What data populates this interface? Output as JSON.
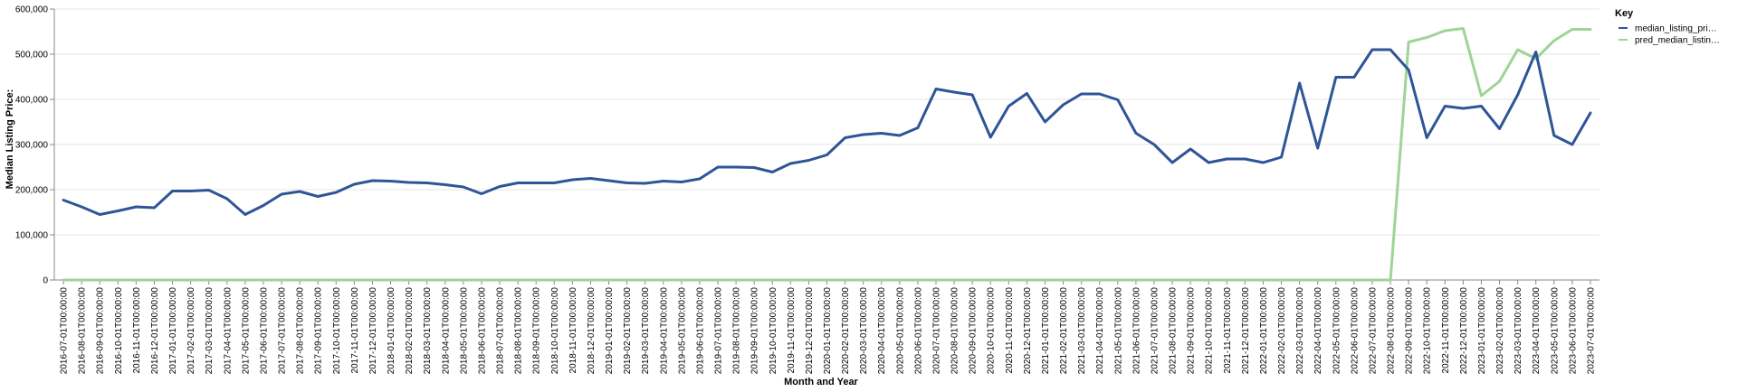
{
  "chart_data": {
    "type": "line",
    "xlabel": "Month and Year",
    "ylabel": "Median Listing Price:",
    "ylim": [
      0,
      600000
    ],
    "y_ticks": [
      "0",
      "100,000",
      "200,000",
      "300,000",
      "400,000",
      "500,000",
      "600,000"
    ],
    "grid": "horizontal",
    "legend": {
      "title": "Key",
      "placement": "top-right"
    },
    "x": [
      "2016-07-01T00:00:00",
      "2016-08-01T00:00:00",
      "2016-09-01T00:00:00",
      "2016-10-01T00:00:00",
      "2016-11-01T00:00:00",
      "2016-12-01T00:00:00",
      "2017-01-01T00:00:00",
      "2017-02-01T00:00:00",
      "2017-03-01T00:00:00",
      "2017-04-01T00:00:00",
      "2017-05-01T00:00:00",
      "2017-06-01T00:00:00",
      "2017-07-01T00:00:00",
      "2017-08-01T00:00:00",
      "2017-09-01T00:00:00",
      "2017-10-01T00:00:00",
      "2017-11-01T00:00:00",
      "2017-12-01T00:00:00",
      "2018-01-01T00:00:00",
      "2018-02-01T00:00:00",
      "2018-03-01T00:00:00",
      "2018-04-01T00:00:00",
      "2018-05-01T00:00:00",
      "2018-06-01T00:00:00",
      "2018-07-01T00:00:00",
      "2018-08-01T00:00:00",
      "2018-09-01T00:00:00",
      "2018-10-01T00:00:00",
      "2018-11-01T00:00:00",
      "2018-12-01T00:00:00",
      "2019-01-01T00:00:00",
      "2019-02-01T00:00:00",
      "2019-03-01T00:00:00",
      "2019-04-01T00:00:00",
      "2019-05-01T00:00:00",
      "2019-06-01T00:00:00",
      "2019-07-01T00:00:00",
      "2019-08-01T00:00:00",
      "2019-09-01T00:00:00",
      "2019-10-01T00:00:00",
      "2019-11-01T00:00:00",
      "2019-12-01T00:00:00",
      "2020-01-01T00:00:00",
      "2020-02-01T00:00:00",
      "2020-03-01T00:00:00",
      "2020-04-01T00:00:00",
      "2020-05-01T00:00:00",
      "2020-06-01T00:00:00",
      "2020-07-01T00:00:00",
      "2020-08-01T00:00:00",
      "2020-09-01T00:00:00",
      "2020-10-01T00:00:00",
      "2020-11-01T00:00:00",
      "2020-12-01T00:00:00",
      "2021-01-01T00:00:00",
      "2021-02-01T00:00:00",
      "2021-03-01T00:00:00",
      "2021-04-01T00:00:00",
      "2021-05-01T00:00:00",
      "2021-06-01T00:00:00",
      "2021-07-01T00:00:00",
      "2021-08-01T00:00:00",
      "2021-09-01T00:00:00",
      "2021-10-01T00:00:00",
      "2021-11-01T00:00:00",
      "2021-12-01T00:00:00",
      "2022-01-01T00:00:00",
      "2022-02-01T00:00:00",
      "2022-03-01T00:00:00",
      "2022-04-01T00:00:00",
      "2022-05-01T00:00:00",
      "2022-06-01T00:00:00",
      "2022-07-01T00:00:00",
      "2022-08-01T00:00:00",
      "2022-09-01T00:00:00",
      "2022-10-01T00:00:00",
      "2022-11-01T00:00:00",
      "2022-12-01T00:00:00",
      "2023-01-01T00:00:00",
      "2023-02-01T00:00:00",
      "2023-03-01T00:00:00",
      "2023-04-01T00:00:00",
      "2023-05-01T00:00:00",
      "2023-06-01T00:00:00",
      "2023-07-01T00:00:00"
    ],
    "series": [
      {
        "name": "median_listing_pri…",
        "color": "#2f5597",
        "values": [
          177000,
          162000,
          145000,
          153000,
          162000,
          160000,
          197000,
          197000,
          199000,
          180000,
          145000,
          165000,
          190000,
          196000,
          185000,
          194000,
          212000,
          220000,
          219000,
          216000,
          215000,
          211000,
          206000,
          191000,
          207000,
          215000,
          215000,
          215000,
          222000,
          225000,
          220000,
          215000,
          214000,
          219000,
          217000,
          224000,
          250000,
          250000,
          249000,
          239000,
          258000,
          265000,
          277000,
          315000,
          322000,
          325000,
          320000,
          337000,
          423000,
          416000,
          410000,
          316000,
          385000,
          413000,
          350000,
          388000,
          412000,
          412000,
          399000,
          325000,
          300000,
          260000,
          290000,
          260000,
          268000,
          268000,
          260000,
          272000,
          436000,
          292000,
          449000,
          449000,
          510000,
          510000,
          465000,
          315000,
          385000,
          380000,
          385000,
          335000,
          410000,
          505000,
          320000,
          300000,
          370000
        ]
      },
      {
        "name": "pred_median_listin…",
        "color": "#9dd595",
        "values": [
          0,
          0,
          0,
          0,
          0,
          0,
          0,
          0,
          0,
          0,
          0,
          0,
          0,
          0,
          0,
          0,
          0,
          0,
          0,
          0,
          0,
          0,
          0,
          0,
          0,
          0,
          0,
          0,
          0,
          0,
          0,
          0,
          0,
          0,
          0,
          0,
          0,
          0,
          0,
          0,
          0,
          0,
          0,
          0,
          0,
          0,
          0,
          0,
          0,
          0,
          0,
          0,
          0,
          0,
          0,
          0,
          0,
          0,
          0,
          0,
          0,
          0,
          0,
          0,
          0,
          0,
          0,
          0,
          0,
          0,
          0,
          0,
          0,
          0,
          527000,
          537000,
          552000,
          557000,
          408000,
          440000,
          510000,
          490000,
          530000,
          555000,
          555000
        ]
      }
    ]
  }
}
